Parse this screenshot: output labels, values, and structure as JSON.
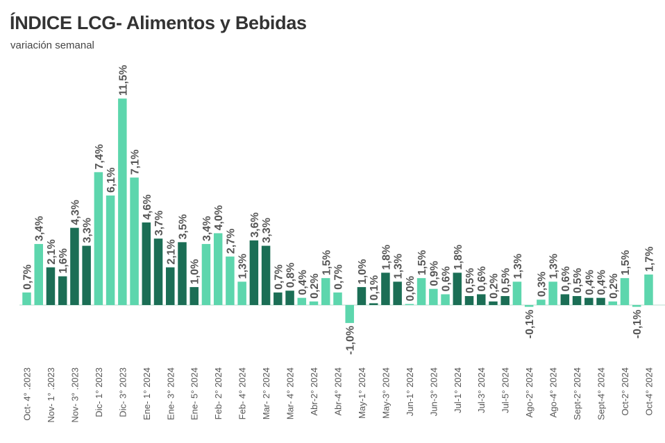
{
  "chart_data": {
    "type": "bar",
    "title": "ÍNDICE LCG- Alimentos y Bebidas",
    "subtitle": "variación semanal",
    "xlabel": "",
    "ylabel": "",
    "ylim": [
      -1.5,
      11.5
    ],
    "grid": false,
    "legend": "none",
    "colors": {
      "light": "#5dd6ad",
      "dark": "#1b6e55",
      "baseline": "#cfe9df",
      "label": "#555555"
    },
    "tick_labels": [
      "Oct- 4° .2023",
      "Nov- 1° .2023",
      "Nov- 3° .2023",
      "Dic- 1° 2023",
      "Dic- 3° 2023",
      "Ene- 1° 2024",
      "Ene- 3° 2024",
      "Ene- 5° 2024",
      "Feb- 2° 2024",
      "Feb- 4° 2024",
      "Mar- 2° 2024",
      "Mar- 4° 2024",
      "Abr-2° 2024",
      "Abr-4° 2024",
      "May-1° 2024",
      "May-3° 2024",
      "Jun-1° 2024",
      "Jun-3° 2024",
      "Jul-1° 2024",
      "Jul-3° 2024",
      "Jul-5° 2024",
      "Ago-2° 2024",
      "Ago-4° 2024",
      "Sept-2° 2024",
      "Sept-4° 2024",
      "Oct-2° 2024",
      "Oct-4° 2024"
    ],
    "values": [
      0.7,
      3.4,
      2.1,
      1.6,
      4.3,
      3.3,
      7.4,
      6.1,
      11.5,
      7.1,
      4.6,
      3.7,
      2.1,
      3.5,
      1.0,
      3.4,
      4.0,
      2.7,
      1.3,
      3.6,
      3.3,
      0.7,
      0.8,
      0.4,
      0.2,
      1.5,
      0.7,
      -1.0,
      1.0,
      0.1,
      1.8,
      1.3,
      0.0,
      1.5,
      0.9,
      0.6,
      1.8,
      0.5,
      0.6,
      0.2,
      0.5,
      1.3,
      -0.1,
      0.3,
      1.3,
      0.6,
      0.5,
      0.4,
      0.4,
      0.2,
      1.5,
      -0.1,
      1.7
    ],
    "data_labels": [
      "0,7%",
      "3,4%",
      "2,1%",
      "1,6%",
      "4,3%",
      "3,3%",
      "7,4%",
      "6,1%",
      "11,5%",
      "7,1%",
      "4,6%",
      "3,7%",
      "2,1%",
      "3,5%",
      "1,0%",
      "3,4%",
      "4,0%",
      "2,7%",
      "1,3%",
      "3,6%",
      "3,3%",
      "0,7%",
      "0,8%",
      "0,4%",
      "0,2%",
      "1,5%",
      "0,7%",
      "-1,0%",
      "1,0%",
      "0,1%",
      "1,8%",
      "1,3%",
      "0,0%",
      "1,5%",
      "0,9%",
      "0,6%",
      "1,8%",
      "0,5%",
      "0,6%",
      "0,2%",
      "0,5%",
      "1,3%",
      "-0,1%",
      "0,3%",
      "1,3%",
      "0,6%",
      "0,5%",
      "0,4%",
      "0,4%",
      "0,2%",
      "1,5%",
      "-0,1%",
      "1,7%"
    ],
    "shade": [
      "L",
      "L",
      "D",
      "D",
      "D",
      "D",
      "L",
      "L",
      "L",
      "L",
      "D",
      "D",
      "D",
      "D",
      "D",
      "L",
      "L",
      "L",
      "L",
      "D",
      "D",
      "D",
      "D",
      "L",
      "L",
      "L",
      "L",
      "L",
      "D",
      "D",
      "D",
      "D",
      "L",
      "L",
      "L",
      "L",
      "D",
      "D",
      "D",
      "D",
      "D",
      "L",
      "L",
      "L",
      "L",
      "D",
      "D",
      "D",
      "D",
      "L",
      "L",
      "L",
      "L"
    ]
  }
}
